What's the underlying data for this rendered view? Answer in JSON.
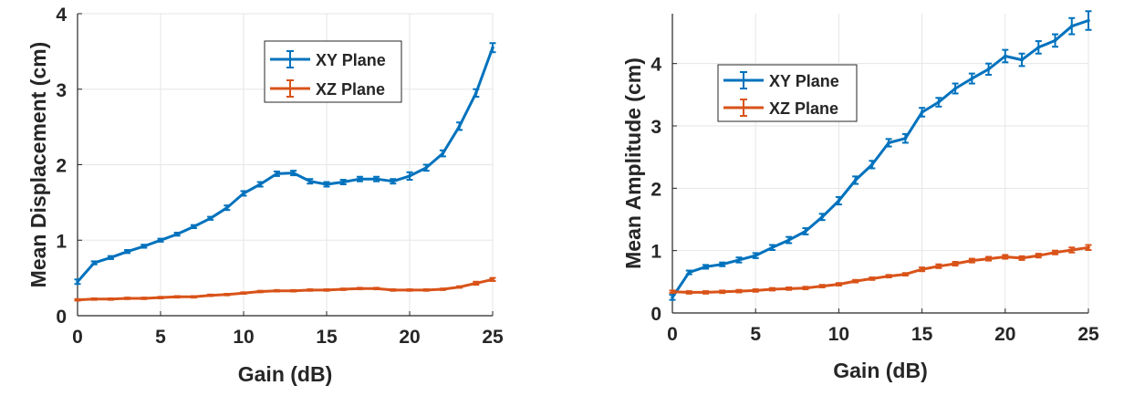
{
  "colors": {
    "xy": "#0072BD",
    "xz": "#D95319",
    "axis": "#262626",
    "grid": "#e6e6e6"
  },
  "chart_data": [
    {
      "type": "line",
      "title": "",
      "xlabel": "Gain (dB)",
      "ylabel": "Mean Displacement (cm)",
      "xlim": [
        0,
        25
      ],
      "ylim": [
        0,
        4
      ],
      "xticks": [
        0,
        5,
        10,
        15,
        20,
        25
      ],
      "yticks": [
        0,
        1,
        2,
        3,
        4
      ],
      "xtick_labels": [
        "0",
        "5",
        "10",
        "15",
        "20",
        "25"
      ],
      "ytick_labels": [
        "0",
        "1",
        "2",
        "3",
        "4"
      ],
      "grid": true,
      "legend_position": "top-right",
      "x": [
        0,
        1,
        2,
        3,
        4,
        5,
        6,
        7,
        8,
        9,
        10,
        11,
        12,
        13,
        14,
        15,
        16,
        17,
        18,
        19,
        20,
        21,
        22,
        23,
        24,
        25
      ],
      "series": [
        {
          "name": "XY Plane",
          "color": "#0072BD",
          "values": [
            0.45,
            0.7,
            0.77,
            0.85,
            0.92,
            1.0,
            1.08,
            1.18,
            1.29,
            1.43,
            1.62,
            1.74,
            1.88,
            1.89,
            1.78,
            1.74,
            1.77,
            1.81,
            1.81,
            1.78,
            1.85,
            1.96,
            2.15,
            2.51,
            2.95,
            3.55
          ],
          "errors": [
            0.03,
            0.02,
            0.02,
            0.02,
            0.02,
            0.02,
            0.02,
            0.02,
            0.02,
            0.03,
            0.03,
            0.03,
            0.03,
            0.03,
            0.03,
            0.03,
            0.03,
            0.03,
            0.03,
            0.03,
            0.05,
            0.04,
            0.04,
            0.05,
            0.05,
            0.06
          ]
        },
        {
          "name": "XZ Plane",
          "color": "#D95319",
          "values": [
            0.21,
            0.22,
            0.22,
            0.23,
            0.23,
            0.24,
            0.25,
            0.25,
            0.27,
            0.28,
            0.3,
            0.32,
            0.33,
            0.33,
            0.34,
            0.34,
            0.35,
            0.36,
            0.36,
            0.34,
            0.34,
            0.34,
            0.35,
            0.38,
            0.43,
            0.48
          ],
          "errors": [
            0.01,
            0.01,
            0.01,
            0.01,
            0.01,
            0.01,
            0.01,
            0.01,
            0.01,
            0.01,
            0.01,
            0.01,
            0.01,
            0.01,
            0.01,
            0.01,
            0.01,
            0.01,
            0.01,
            0.01,
            0.01,
            0.01,
            0.01,
            0.01,
            0.02,
            0.02
          ]
        }
      ]
    },
    {
      "type": "line",
      "title": "",
      "xlabel": "Gain (dB)",
      "ylabel": "Mean Amplitude (cm)",
      "xlim": [
        0,
        25
      ],
      "ylim": [
        0,
        4.8
      ],
      "xticks": [
        0,
        5,
        10,
        15,
        20,
        25
      ],
      "yticks": [
        0,
        1,
        2,
        3,
        4
      ],
      "xtick_labels": [
        "0",
        "5",
        "10",
        "15",
        "20",
        "25"
      ],
      "ytick_labels": [
        "0",
        "1",
        "2",
        "3",
        "4"
      ],
      "grid": true,
      "legend_position": "top-left",
      "x": [
        0,
        1,
        2,
        3,
        4,
        5,
        6,
        7,
        8,
        9,
        10,
        11,
        12,
        13,
        14,
        15,
        16,
        17,
        18,
        19,
        20,
        21,
        22,
        23,
        24,
        25
      ],
      "series": [
        {
          "name": "XY Plane",
          "color": "#0072BD",
          "values": [
            0.25,
            0.65,
            0.74,
            0.78,
            0.85,
            0.92,
            1.05,
            1.17,
            1.31,
            1.54,
            1.8,
            2.13,
            2.38,
            2.73,
            2.8,
            3.22,
            3.38,
            3.6,
            3.76,
            3.91,
            4.12,
            4.06,
            4.26,
            4.37,
            4.6,
            4.69
          ],
          "errors": [
            0.04,
            0.03,
            0.03,
            0.03,
            0.04,
            0.04,
            0.04,
            0.05,
            0.05,
            0.05,
            0.06,
            0.06,
            0.06,
            0.06,
            0.07,
            0.07,
            0.07,
            0.08,
            0.08,
            0.09,
            0.1,
            0.1,
            0.1,
            0.1,
            0.13,
            0.15
          ]
        },
        {
          "name": "XZ Plane",
          "color": "#D95319",
          "values": [
            0.34,
            0.33,
            0.33,
            0.34,
            0.35,
            0.36,
            0.38,
            0.39,
            0.4,
            0.43,
            0.46,
            0.51,
            0.55,
            0.59,
            0.62,
            0.7,
            0.75,
            0.79,
            0.84,
            0.87,
            0.9,
            0.88,
            0.92,
            0.97,
            1.01,
            1.05
          ],
          "errors": [
            0.02,
            0.02,
            0.02,
            0.02,
            0.02,
            0.02,
            0.02,
            0.02,
            0.02,
            0.02,
            0.02,
            0.02,
            0.02,
            0.02,
            0.02,
            0.03,
            0.03,
            0.03,
            0.03,
            0.03,
            0.03,
            0.03,
            0.03,
            0.03,
            0.04,
            0.04
          ]
        }
      ]
    }
  ]
}
